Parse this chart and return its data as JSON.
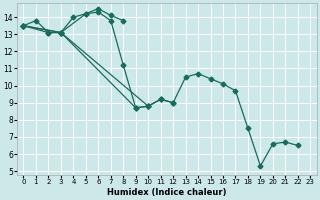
{
  "xlabel": "Humidex (Indice chaleur)",
  "bg_color": "#cce8e8",
  "grid_color": "#ffffff",
  "line_color": "#1a6b5a",
  "markersize": 2.5,
  "linewidth": 0.9,
  "xlim": [
    -0.5,
    23.5
  ],
  "ylim": [
    4.8,
    14.8
  ],
  "yticks": [
    5,
    6,
    7,
    8,
    9,
    10,
    11,
    12,
    13,
    14
  ],
  "xticks": [
    0,
    1,
    2,
    3,
    4,
    5,
    6,
    7,
    8,
    9,
    10,
    11,
    12,
    13,
    14,
    15,
    16,
    17,
    18,
    19,
    20,
    21,
    22,
    23
  ],
  "lines": [
    {
      "x": [
        0,
        1,
        2,
        3,
        4,
        5,
        6,
        7,
        8
      ],
      "y": [
        13.5,
        13.8,
        13.1,
        13.1,
        14.0,
        14.2,
        14.5,
        14.1,
        13.8
      ]
    },
    {
      "x": [
        0,
        2,
        3,
        5,
        6,
        7,
        8,
        9,
        10,
        11,
        12,
        13,
        14,
        15,
        16,
        17,
        18,
        19,
        20,
        21,
        22
      ],
      "y": [
        13.5,
        13.1,
        13.1,
        14.2,
        14.3,
        13.8,
        11.2,
        8.7,
        8.8,
        9.2,
        9.0,
        10.5,
        10.7,
        10.4,
        10.1,
        9.7,
        7.5,
        5.3,
        6.6,
        6.7,
        6.5
      ]
    },
    {
      "x": [
        0,
        3,
        9,
        10,
        11,
        12
      ],
      "y": [
        13.5,
        13.1,
        8.7,
        8.8,
        9.2,
        9.0
      ]
    },
    {
      "x": [
        0,
        3,
        10
      ],
      "y": [
        13.5,
        13.1,
        8.8
      ]
    }
  ]
}
